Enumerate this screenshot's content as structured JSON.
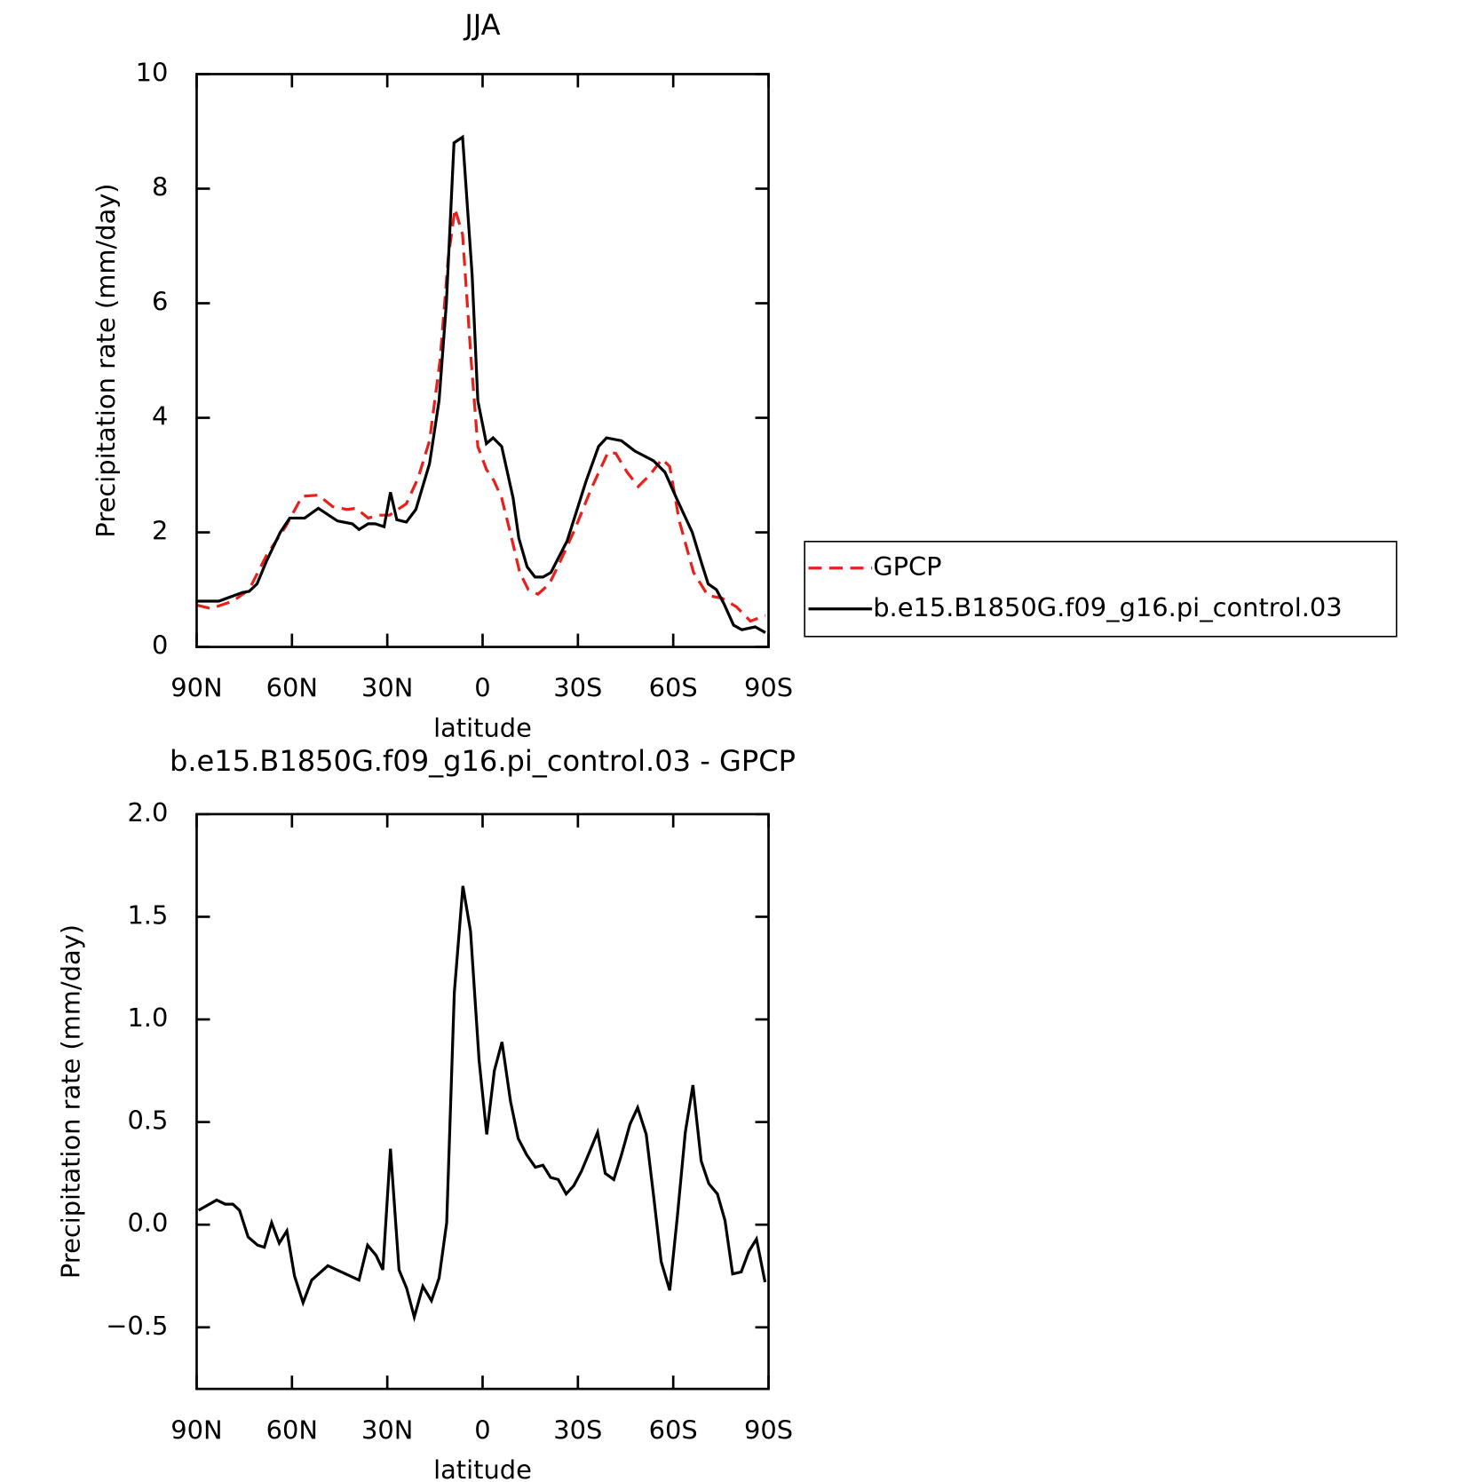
{
  "chart_data": [
    {
      "type": "line",
      "title": "JJA",
      "xlabel": "latitude",
      "ylabel": "Precipitation rate (mm/day)",
      "xlim": [
        90,
        -90
      ],
      "xticks": [
        {
          "value": 90,
          "label": "90N"
        },
        {
          "value": 60,
          "label": "60N"
        },
        {
          "value": 30,
          "label": "30N"
        },
        0,
        {
          "value": -30,
          "label": "30S"
        },
        {
          "value": -60,
          "label": "60S"
        },
        {
          "value": -90,
          "label": "90S"
        }
      ],
      "ylim": [
        0,
        10
      ],
      "yticks": [
        0,
        2,
        4,
        6,
        8,
        10
      ],
      "legend": "right",
      "series": [
        {
          "name": "GPCP",
          "color": "#e8201c",
          "dashed": true,
          "x": [
            90,
            85.5,
            78.6,
            73.5,
            68,
            62,
            56.8,
            51.7,
            47.2,
            42.7,
            39.8,
            36,
            32.9,
            29.3,
            24,
            20.3,
            16.7,
            13.4,
            10.8,
            8.7,
            6.3,
            3.6,
            1.5,
            -1.2,
            -3.6,
            -6,
            -8.7,
            -11.7,
            -14.4,
            -17.4,
            -21,
            -24.5,
            -29,
            -34.1,
            -39.5,
            -41.9,
            -45.5,
            -49,
            -52.6,
            -56.5,
            -58.9,
            -61.9,
            -66.4,
            -70.9,
            -75.4,
            -79.9,
            -84.3,
            -89
          ],
          "values": [
            0.73,
            0.67,
            0.8,
            1.0,
            1.6,
            2.1,
            2.63,
            2.65,
            2.45,
            2.4,
            2.42,
            2.25,
            2.3,
            2.3,
            2.5,
            2.95,
            3.6,
            5.0,
            6.8,
            7.65,
            7.2,
            5.0,
            3.5,
            3.1,
            2.9,
            2.6,
            2.0,
            1.3,
            1.0,
            0.92,
            1.1,
            1.5,
            2.05,
            2.75,
            3.4,
            3.38,
            3.05,
            2.8,
            3.0,
            3.28,
            3.15,
            2.2,
            1.3,
            0.9,
            0.85,
            0.7,
            0.45,
            0.55
          ]
        },
        {
          "name": "b.e15.B1850G.f09_g16.pi_control.03",
          "color": "#000000",
          "dashed": false,
          "x": [
            90,
            83,
            75.6,
            73.5,
            71,
            68,
            63.7,
            60.7,
            56,
            51.7,
            45.7,
            41,
            38.9,
            36,
            33.8,
            31,
            29,
            27,
            24,
            21,
            16.7,
            13.7,
            11.4,
            9,
            6.3,
            3.3,
            1.5,
            -1.2,
            -3.3,
            -6,
            -9.6,
            -11.4,
            -14,
            -16.5,
            -19,
            -21.5,
            -26.6,
            -32.6,
            -36.5,
            -39,
            -43.7,
            -47.9,
            -53.8,
            -57.4,
            -61,
            -66,
            -69,
            -71,
            -73.6,
            -76,
            -79,
            -81.6,
            -85.8,
            -89
          ],
          "values": [
            0.8,
            0.8,
            0.95,
            0.97,
            1.1,
            1.5,
            2.0,
            2.25,
            2.25,
            2.42,
            2.2,
            2.15,
            2.05,
            2.15,
            2.15,
            2.1,
            2.7,
            2.22,
            2.18,
            2.4,
            3.2,
            4.3,
            6.0,
            8.8,
            8.9,
            6.5,
            4.3,
            3.55,
            3.65,
            3.5,
            2.6,
            1.9,
            1.4,
            1.22,
            1.22,
            1.3,
            1.85,
            2.9,
            3.5,
            3.65,
            3.6,
            3.42,
            3.25,
            3.05,
            2.6,
            2.0,
            1.45,
            1.1,
            1.0,
            0.75,
            0.38,
            0.3,
            0.35,
            0.25
          ]
        }
      ]
    },
    {
      "type": "line",
      "title": "b.e15.B1850G.f09_g16.pi_control.03 - GPCP",
      "xlabel": "latitude",
      "ylabel": "Precipitation rate (mm/day)",
      "xlim": [
        90,
        -90
      ],
      "xticks": [
        {
          "value": 90,
          "label": "90N"
        },
        {
          "value": 60,
          "label": "60N"
        },
        {
          "value": 30,
          "label": "30N"
        },
        0,
        {
          "value": -30,
          "label": "30S"
        },
        {
          "value": -60,
          "label": "60S"
        },
        {
          "value": -90,
          "label": "90S"
        }
      ],
      "ylim": [
        -0.8,
        2.0
      ],
      "yticks": [
        {
          "value": -0.5,
          "label": "−0.5"
        },
        {
          "value": 0,
          "label": "0.0"
        },
        0.5,
        {
          "value": 1,
          "label": "1.0"
        },
        1.5,
        {
          "value": 2,
          "label": "2.0"
        }
      ],
      "color": "#000000",
      "x": [
        89.4,
        83.7,
        81.0,
        78.6,
        76.5,
        73.8,
        70.8,
        68.7,
        66.4,
        64.0,
        61.6,
        59.2,
        56.5,
        53.8,
        48.7,
        38.9,
        36.2,
        33.5,
        31.4,
        29.0,
        26.3,
        23.9,
        21.5,
        18.8,
        16.1,
        13.7,
        11.3,
        8.9,
        6.2,
        3.8,
        1.1,
        -1.3,
        -3.7,
        -6.1,
        -8.8,
        -11.2,
        -13.9,
        -16.6,
        -19.0,
        -21.4,
        -23.8,
        -26.3,
        -28.7,
        -31.1,
        -33.8,
        -36.2,
        -38.6,
        -41.3,
        -43.7,
        -46.4,
        -48.8,
        -51.5,
        -53.9,
        -56.2,
        -58.9,
        -61.3,
        -63.8,
        -66.2,
        -68.8,
        -71.2,
        -73.9,
        -76.3,
        -78.7,
        -81.4,
        -83.8,
        -86.2,
        -88.9
      ],
      "values": [
        0.07,
        0.12,
        0.1,
        0.1,
        0.07,
        -0.06,
        -0.1,
        -0.11,
        0.01,
        -0.09,
        -0.03,
        -0.25,
        -0.38,
        -0.27,
        -0.2,
        -0.27,
        -0.1,
        -0.15,
        -0.22,
        0.37,
        -0.22,
        -0.31,
        -0.45,
        -0.3,
        -0.37,
        -0.26,
        0.01,
        1.13,
        1.65,
        1.43,
        0.8,
        0.44,
        0.75,
        0.89,
        0.6,
        0.42,
        0.34,
        0.28,
        0.29,
        0.23,
        0.22,
        0.15,
        0.19,
        0.26,
        0.36,
        0.45,
        0.25,
        0.22,
        0.34,
        0.49,
        0.57,
        0.44,
        0.13,
        -0.18,
        -0.32,
        0.04,
        0.45,
        0.68,
        0.31,
        0.2,
        0.15,
        0.02,
        -0.24,
        -0.23,
        -0.13,
        -0.07,
        -0.28
      ]
    }
  ]
}
